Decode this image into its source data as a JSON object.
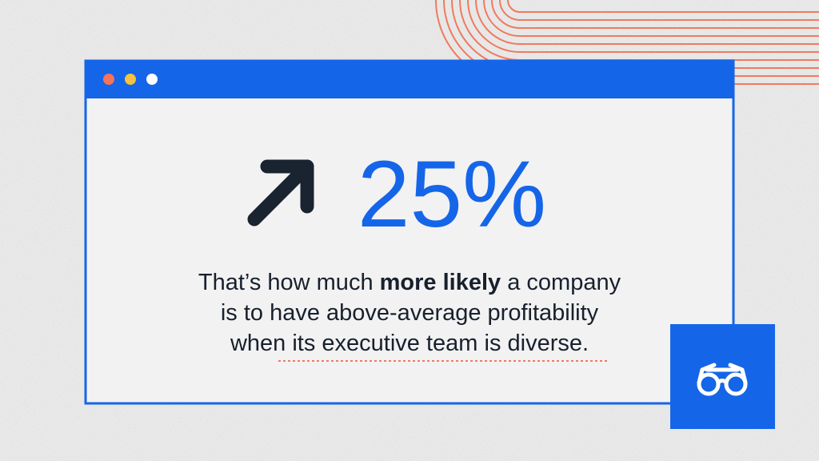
{
  "stat": "25%",
  "text": {
    "line1": [
      "That’s how much",
      "more likely",
      "a company"
    ],
    "line2": "is to have above-average profitability",
    "line3": "when its executive team is diverse."
  }
}
